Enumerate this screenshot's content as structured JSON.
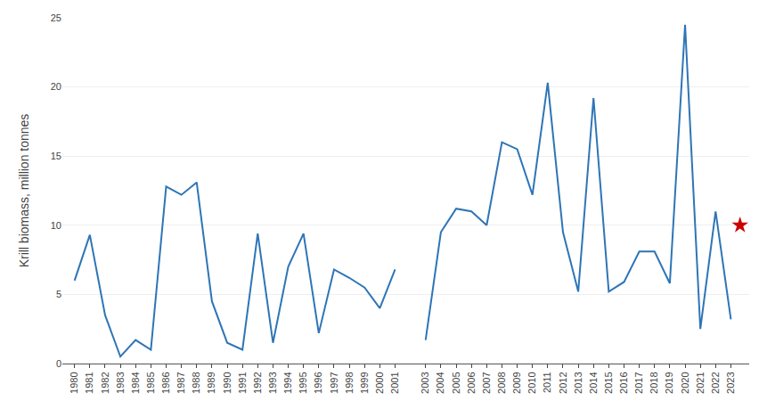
{
  "chart_data": {
    "type": "line",
    "ylabel": "Krill biomass, million tonnes",
    "xlim": [
      1979.2,
      2024.2
    ],
    "xticks": [
      1980,
      1981,
      1982,
      1983,
      1984,
      1985,
      1986,
      1987,
      1988,
      1989,
      1990,
      1991,
      1992,
      1993,
      1994,
      1995,
      1996,
      1997,
      1998,
      1999,
      2000,
      2001,
      2003,
      2004,
      2005,
      2006,
      2007,
      2008,
      2009,
      2010,
      2011,
      2012,
      2013,
      2014,
      2015,
      2016,
      2017,
      2018,
      2019,
      2020,
      2021,
      2022,
      2023
    ],
    "ylim": [
      0,
      25
    ],
    "yticks": [
      0,
      5,
      10,
      15,
      20,
      25
    ],
    "grid": true,
    "series": [
      {
        "type": "line",
        "color": "#2E75B6",
        "x": [
          1980,
          1981,
          1982,
          1983,
          1984,
          1985,
          1986,
          1987,
          1988,
          1989,
          1990,
          1991,
          1992,
          1993,
          1994,
          1995,
          1996,
          1997,
          1998,
          1999,
          2000,
          2001,
          2002,
          2003,
          2004,
          2005,
          2006,
          2007,
          2008,
          2009,
          2010,
          2011,
          2012,
          2013,
          2014,
          2015,
          2016,
          2017,
          2018,
          2019,
          2020,
          2021,
          2022,
          2023
        ],
        "values": [
          6.0,
          9.3,
          3.5,
          0.5,
          1.7,
          1.0,
          12.8,
          12.2,
          13.1,
          4.5,
          1.5,
          1.0,
          9.4,
          1.5,
          7.0,
          9.4,
          2.2,
          6.8,
          6.2,
          5.5,
          4.0,
          6.8,
          null,
          1.7,
          9.5,
          11.2,
          11.0,
          10.0,
          16.0,
          15.5,
          12.2,
          20.3,
          9.5,
          5.2,
          19.2,
          5.2,
          5.9,
          8.1,
          8.1,
          5.8,
          24.5,
          2.5,
          11.0,
          3.2
        ]
      },
      {
        "type": "scatter",
        "marker": "star",
        "color": "#CC0000",
        "x": [
          2023.6
        ],
        "values": [
          10.0
        ]
      }
    ]
  }
}
